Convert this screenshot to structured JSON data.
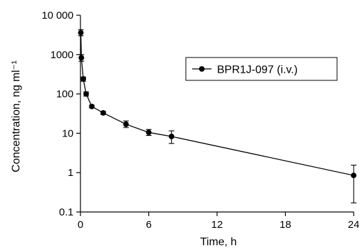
{
  "chart_data": {
    "type": "line",
    "title": "",
    "xlabel": "Time, h",
    "ylabel": "Concentration, ng ml⁻¹",
    "x_scale": "linear",
    "y_scale": "log",
    "xlim": [
      0,
      24
    ],
    "ylim": [
      0.1,
      10000
    ],
    "xticks": [
      0,
      6,
      12,
      18,
      24
    ],
    "xtick_labels": [
      "0",
      "6",
      "12",
      "18",
      "24"
    ],
    "yticks": [
      0.1,
      1,
      10,
      100,
      1000,
      10000
    ],
    "ytick_labels": [
      "0.1",
      "1",
      "10",
      "100",
      "1000",
      "10 000"
    ],
    "grid": false,
    "legend_position": "top-right",
    "series": [
      {
        "name": "BPR1J-097 (i.v.)",
        "color": "#000000",
        "marker": "circle",
        "x": [
          0.033,
          0.083,
          0.25,
          0.5,
          1,
          2,
          4,
          6,
          8,
          24
        ],
        "y": [
          3600,
          830,
          240,
          100,
          48,
          33,
          17,
          10.5,
          8.3,
          0.85
        ],
        "y_err_low": [
          3000,
          680,
          210,
          88,
          44,
          30,
          14,
          8.8,
          5.5,
          0.17
        ],
        "y_err_high": [
          4300,
          1000,
          270,
          113,
          52,
          36,
          20.5,
          12.5,
          11.5,
          1.55
        ]
      }
    ]
  }
}
